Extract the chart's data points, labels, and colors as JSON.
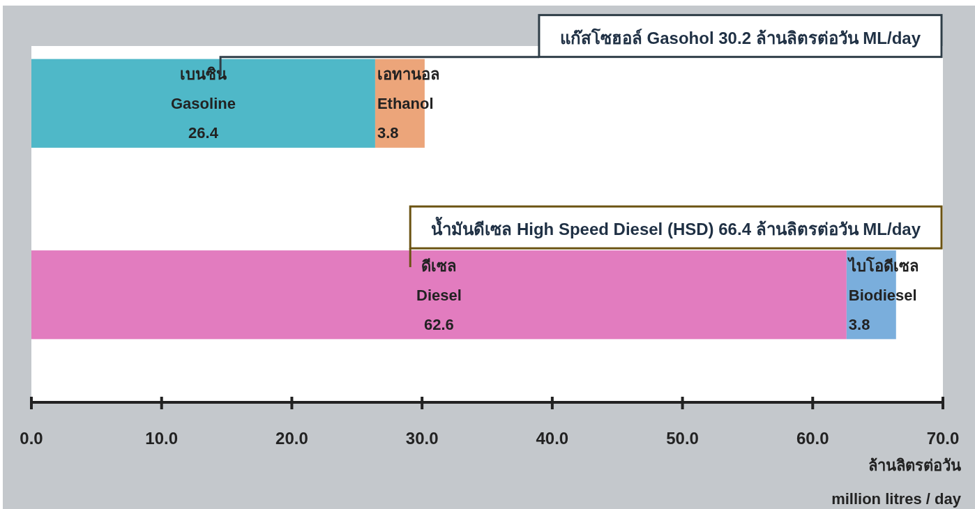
{
  "chart_data": {
    "type": "bar",
    "orientation": "horizontal",
    "stacked": true,
    "categories": [
      null,
      null
    ],
    "series": [
      {
        "colors": [
          "#4fb8c8",
          "#e27cbf"
        ],
        "values": [
          26.4,
          62.6
        ],
        "value_labels": [
          "เบนซิน\nGasoline\n26.4",
          "ดีเซล\nDiesel\n62.6"
        ]
      },
      {
        "colors": [
          "#eca57a",
          "#7aaedc"
        ],
        "values": [
          3.8,
          3.8
        ],
        "value_labels": [
          "เอทานอล\nEthanol\n3.8",
          "ไบโอดีเซล\nBiodiesel\n3.8"
        ]
      }
    ],
    "xlim": [
      0,
      70
    ],
    "xticks": [
      {
        "value": 0,
        "label": "0.0"
      },
      {
        "value": 10,
        "label": "10.0"
      },
      {
        "value": 20,
        "label": "20.0"
      },
      {
        "value": 30,
        "label": "30.0"
      },
      {
        "value": 40,
        "label": "40.0"
      },
      {
        "value": 50,
        "label": "50.0"
      },
      {
        "value": 60,
        "label": "60.0"
      },
      {
        "value": 70,
        "label": "70.0"
      }
    ],
    "xlabel": "ล้านลิตรต่อวัน\nmillion litres / day",
    "annotations": [
      "แก๊สโซฮอล์ Gasohol 30.2 ล้านลิตรต่อวัน ML/day",
      "น้ำมันดีเซล High Speed Diesel (HSD) 66.4 ล้านลิตรต่อวัน ML/day"
    ]
  }
}
